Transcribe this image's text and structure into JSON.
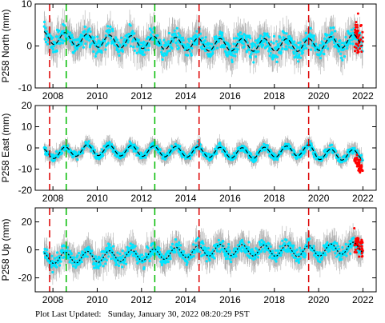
{
  "footer": {
    "label": "Plot Last Updated:",
    "timestamp": "Sunday, January 30, 2022 08:20:29 PST"
  },
  "chart_data": [
    {
      "type": "scatter",
      "ylabel": "P258 North (mm)",
      "ylim": [
        -10,
        10
      ],
      "yticks": [
        -10,
        0,
        10
      ],
      "xlim": [
        2007.2,
        2022.6
      ],
      "xticks": [
        2008,
        2010,
        2012,
        2014,
        2016,
        2018,
        2020,
        2022
      ],
      "series": [
        {
          "name": "",
          "color": "#00e5ff",
          "start": 2007.6,
          "end": 2022.0,
          "trend": [
            [
              2007.6,
              2.0
            ],
            [
              2010,
              1.2
            ],
            [
              2012.6,
              0.8
            ],
            [
              2014.6,
              0.3
            ],
            [
              2019.6,
              0.2
            ],
            [
              2022.0,
              1.5
            ]
          ],
          "seasonal_amp": 1.5,
          "scatter": 2.0,
          "error_bar": 3.0
        },
        {
          "name": "",
          "color": "#ff0000",
          "start": 2021.6,
          "end": 2022.0,
          "offset": 1.0,
          "scatter": 2.5
        }
      ],
      "model_line": {
        "color": "#000000",
        "style": "dashed"
      }
    },
    {
      "type": "scatter",
      "ylabel": "P258 East (mm)",
      "ylim": [
        -20,
        20
      ],
      "yticks": [
        -20,
        -10,
        0,
        10,
        20
      ],
      "xlim": [
        2007.2,
        2022.6
      ],
      "xticks": [
        2008,
        2010,
        2012,
        2014,
        2016,
        2018,
        2020,
        2022
      ],
      "series": [
        {
          "name": "",
          "color": "#00e5ff",
          "start": 2007.6,
          "end": 2022.0,
          "trend": [
            [
              2007.6,
              -3.0
            ],
            [
              2009.5,
              -1.0
            ],
            [
              2012,
              -1.5
            ],
            [
              2014.6,
              -2.0
            ],
            [
              2017,
              -2.5
            ],
            [
              2019.6,
              -1.0
            ],
            [
              2020,
              -3.0
            ],
            [
              2022.0,
              -3.5
            ]
          ],
          "seasonal_amp": 2.5,
          "scatter": 1.5,
          "error_bar": 3.0
        },
        {
          "name": "",
          "color": "#ff0000",
          "start": 2021.6,
          "end": 2022.0,
          "offset": -4.0,
          "scatter": 1.5
        }
      ],
      "model_line": {
        "color": "#000000",
        "style": "dashed"
      }
    },
    {
      "type": "scatter",
      "ylabel": "P258 Up (mm)",
      "ylim": [
        -30,
        30
      ],
      "yticks": [
        -20,
        0,
        20
      ],
      "xlim": [
        2007.2,
        2022.6
      ],
      "xticks": [
        2008,
        2010,
        2012,
        2014,
        2016,
        2018,
        2020,
        2022
      ],
      "series": [
        {
          "name": "",
          "color": "#00e5ff",
          "start": 2007.6,
          "end": 2022.0,
          "trend": [
            [
              2007.6,
              -6.0
            ],
            [
              2012,
              -4.0
            ],
            [
              2015.5,
              0.0
            ],
            [
              2019.6,
              -1.0
            ],
            [
              2022.0,
              2.0
            ]
          ],
          "seasonal_amp": 4.0,
          "scatter": 4.5,
          "error_bar": 8.0
        },
        {
          "name": "",
          "color": "#ff0000",
          "start": 2021.6,
          "end": 2022.0,
          "offset": 2.0,
          "scatter": 4.0
        }
      ],
      "model_line": {
        "color": "#000000",
        "style": "dotted"
      }
    }
  ],
  "event_lines": [
    {
      "x": 2007.85,
      "color": "#dd0000"
    },
    {
      "x": 2008.6,
      "color": "#00bb00"
    },
    {
      "x": 2012.6,
      "color": "#00bb00"
    },
    {
      "x": 2014.6,
      "color": "#dd0000"
    },
    {
      "x": 2019.55,
      "color": "#dd0000"
    }
  ]
}
